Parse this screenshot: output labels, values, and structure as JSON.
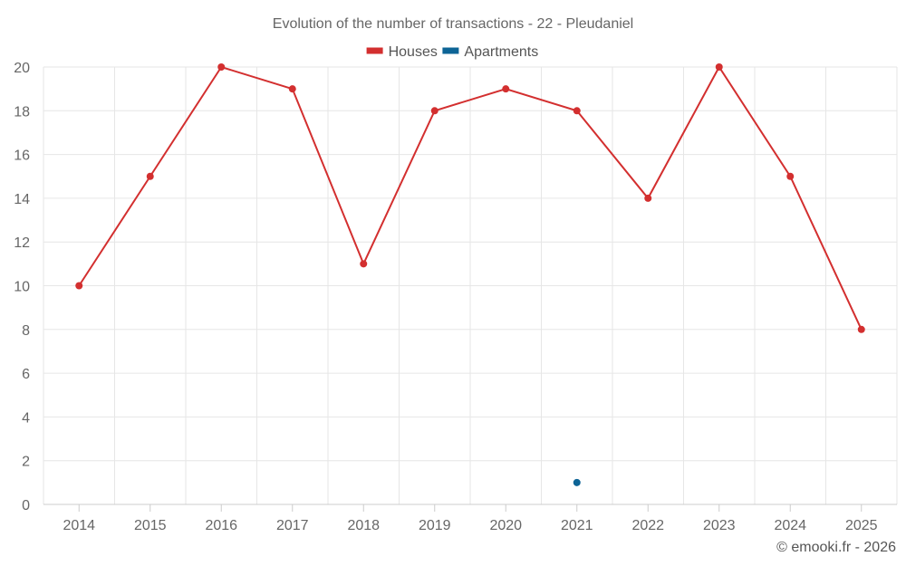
{
  "chart_data": {
    "type": "line",
    "title": "Evolution of the number of transactions - 22 - Pleudaniel",
    "xlabel": "",
    "ylabel": "",
    "categories": [
      "2014",
      "2015",
      "2016",
      "2017",
      "2018",
      "2019",
      "2020",
      "2021",
      "2022",
      "2023",
      "2024",
      "2025"
    ],
    "ylim": [
      0,
      20
    ],
    "yticks": [
      0,
      2,
      4,
      6,
      8,
      10,
      12,
      14,
      16,
      18,
      20
    ],
    "grid": true,
    "legend_position": "top",
    "series": [
      {
        "name": "Houses",
        "color": "#d32f2f",
        "values": [
          10,
          15,
          20,
          19,
          11,
          18,
          19,
          18,
          14,
          20,
          15,
          8
        ]
      },
      {
        "name": "Apartments",
        "color": "#0d6496",
        "values": [
          null,
          null,
          null,
          null,
          null,
          null,
          null,
          1,
          null,
          null,
          null,
          null
        ]
      }
    ]
  },
  "credit": "© emooki.fr - 2026"
}
